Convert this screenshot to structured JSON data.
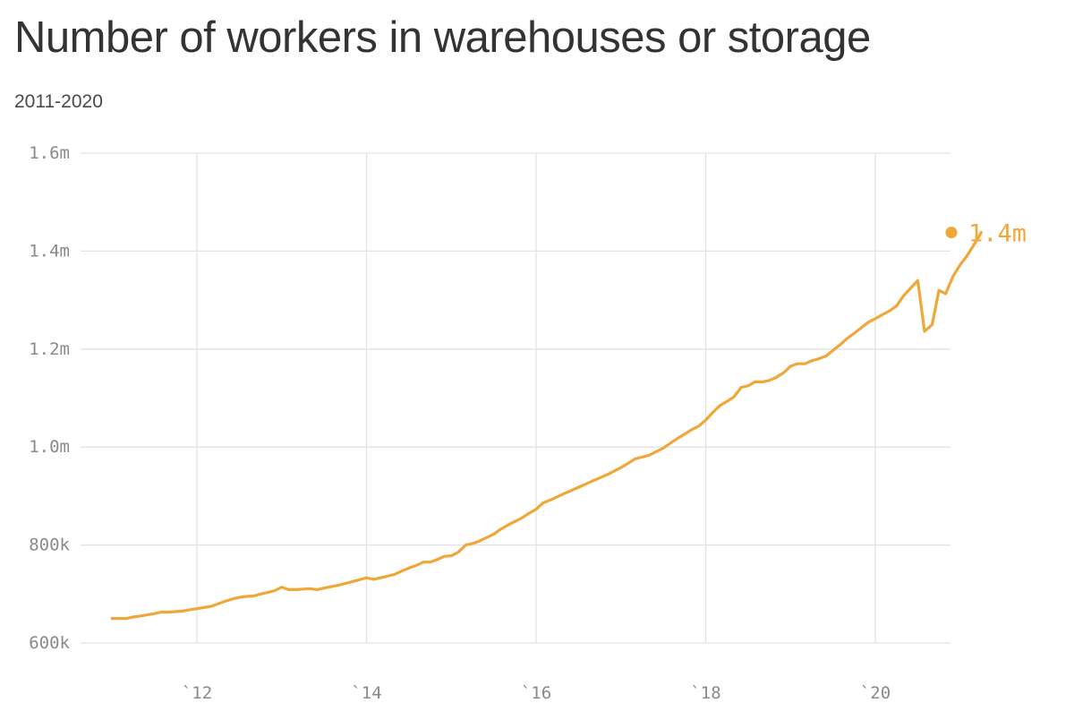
{
  "chart_data": {
    "type": "line",
    "title": "Number of workers in warehouses or storage",
    "subtitle": "2011-2020",
    "xlabel": "",
    "ylabel": "",
    "x_ticks": [
      {
        "value": 2012,
        "label": "`12"
      },
      {
        "value": 2014,
        "label": "`14"
      },
      {
        "value": 2016,
        "label": "`16"
      },
      {
        "value": 2018,
        "label": "`18"
      },
      {
        "value": 2020,
        "label": "`20"
      }
    ],
    "y_ticks": [
      {
        "value": 600000,
        "label": "600k"
      },
      {
        "value": 800000,
        "label": "800k"
      },
      {
        "value": 1000000,
        "label": "1.0m"
      },
      {
        "value": 1200000,
        "label": "1.2m"
      },
      {
        "value": 1400000,
        "label": "1.4m"
      },
      {
        "value": 1600000,
        "label": "1.6m"
      }
    ],
    "xlim": [
      2011.0,
      2020.92
    ],
    "ylim": [
      600000,
      1600000
    ],
    "grid": true,
    "color": "#f0a73a",
    "end_label": "1.4m",
    "series": [
      {
        "points": [
          [
            2011.0,
            650000
          ],
          [
            2011.17,
            650000
          ],
          [
            2011.25,
            653000
          ],
          [
            2011.33,
            655000
          ],
          [
            2011.5,
            660000
          ],
          [
            2011.58,
            663000
          ],
          [
            2011.67,
            663000
          ],
          [
            2011.83,
            665000
          ],
          [
            2011.92,
            668000
          ],
          [
            2012.0,
            670000
          ],
          [
            2012.17,
            675000
          ],
          [
            2012.25,
            680000
          ],
          [
            2012.33,
            685000
          ],
          [
            2012.42,
            690000
          ],
          [
            2012.5,
            693000
          ],
          [
            2012.58,
            695000
          ],
          [
            2012.67,
            696000
          ],
          [
            2012.75,
            700000
          ],
          [
            2012.83,
            703000
          ],
          [
            2012.92,
            707000
          ],
          [
            2013.0,
            714000
          ],
          [
            2013.08,
            709000
          ],
          [
            2013.17,
            709000
          ],
          [
            2013.25,
            710000
          ],
          [
            2013.33,
            711000
          ],
          [
            2013.42,
            709000
          ],
          [
            2013.5,
            712000
          ],
          [
            2013.67,
            718000
          ],
          [
            2013.83,
            725000
          ],
          [
            2014.0,
            733000
          ],
          [
            2014.08,
            730000
          ],
          [
            2014.17,
            733000
          ],
          [
            2014.33,
            740000
          ],
          [
            2014.42,
            747000
          ],
          [
            2014.5,
            753000
          ],
          [
            2014.58,
            758000
          ],
          [
            2014.67,
            765000
          ],
          [
            2014.75,
            765000
          ],
          [
            2014.83,
            770000
          ],
          [
            2014.92,
            777000
          ],
          [
            2015.0,
            778000
          ],
          [
            2015.08,
            785000
          ],
          [
            2015.17,
            800000
          ],
          [
            2015.25,
            803000
          ],
          [
            2015.33,
            808000
          ],
          [
            2015.5,
            822000
          ],
          [
            2015.58,
            832000
          ],
          [
            2015.67,
            841000
          ],
          [
            2015.75,
            848000
          ],
          [
            2015.83,
            855000
          ],
          [
            2015.92,
            865000
          ],
          [
            2016.0,
            873000
          ],
          [
            2016.08,
            886000
          ],
          [
            2016.17,
            892000
          ],
          [
            2016.33,
            905000
          ],
          [
            2016.5,
            918000
          ],
          [
            2016.67,
            931000
          ],
          [
            2016.83,
            943000
          ],
          [
            2017.0,
            958000
          ],
          [
            2017.17,
            976000
          ],
          [
            2017.33,
            983000
          ],
          [
            2017.5,
            998000
          ],
          [
            2017.67,
            1018000
          ],
          [
            2017.83,
            1035000
          ],
          [
            2017.92,
            1043000
          ],
          [
            2018.0,
            1055000
          ],
          [
            2018.08,
            1070000
          ],
          [
            2018.17,
            1085000
          ],
          [
            2018.25,
            1093000
          ],
          [
            2018.33,
            1102000
          ],
          [
            2018.42,
            1122000
          ],
          [
            2018.5,
            1125000
          ],
          [
            2018.58,
            1133000
          ],
          [
            2018.67,
            1133000
          ],
          [
            2018.75,
            1136000
          ],
          [
            2018.83,
            1142000
          ],
          [
            2018.92,
            1152000
          ],
          [
            2019.0,
            1165000
          ],
          [
            2019.08,
            1170000
          ],
          [
            2019.17,
            1170000
          ],
          [
            2019.25,
            1176000
          ],
          [
            2019.33,
            1180000
          ],
          [
            2019.42,
            1186000
          ],
          [
            2019.5,
            1197000
          ],
          [
            2019.58,
            1208000
          ],
          [
            2019.67,
            1222000
          ],
          [
            2019.75,
            1232000
          ],
          [
            2019.83,
            1243000
          ],
          [
            2019.92,
            1255000
          ],
          [
            2020.0,
            1262000
          ],
          [
            2020.08,
            1270000
          ],
          [
            2020.17,
            1278000
          ],
          [
            2020.25,
            1288000
          ],
          [
            2020.33,
            1308000
          ],
          [
            2020.42,
            1325000
          ],
          [
            2020.5,
            1340000
          ],
          [
            2020.58,
            1236000
          ],
          [
            2020.67,
            1250000
          ],
          [
            2020.75,
            1320000
          ],
          [
            2020.83,
            1313000
          ],
          [
            2020.92,
            1350000
          ],
          [
            2021.0,
            1372000
          ],
          [
            2021.08,
            1390000
          ],
          [
            2021.17,
            1415000
          ],
          [
            2021.25,
            1438000
          ]
        ]
      }
    ]
  }
}
